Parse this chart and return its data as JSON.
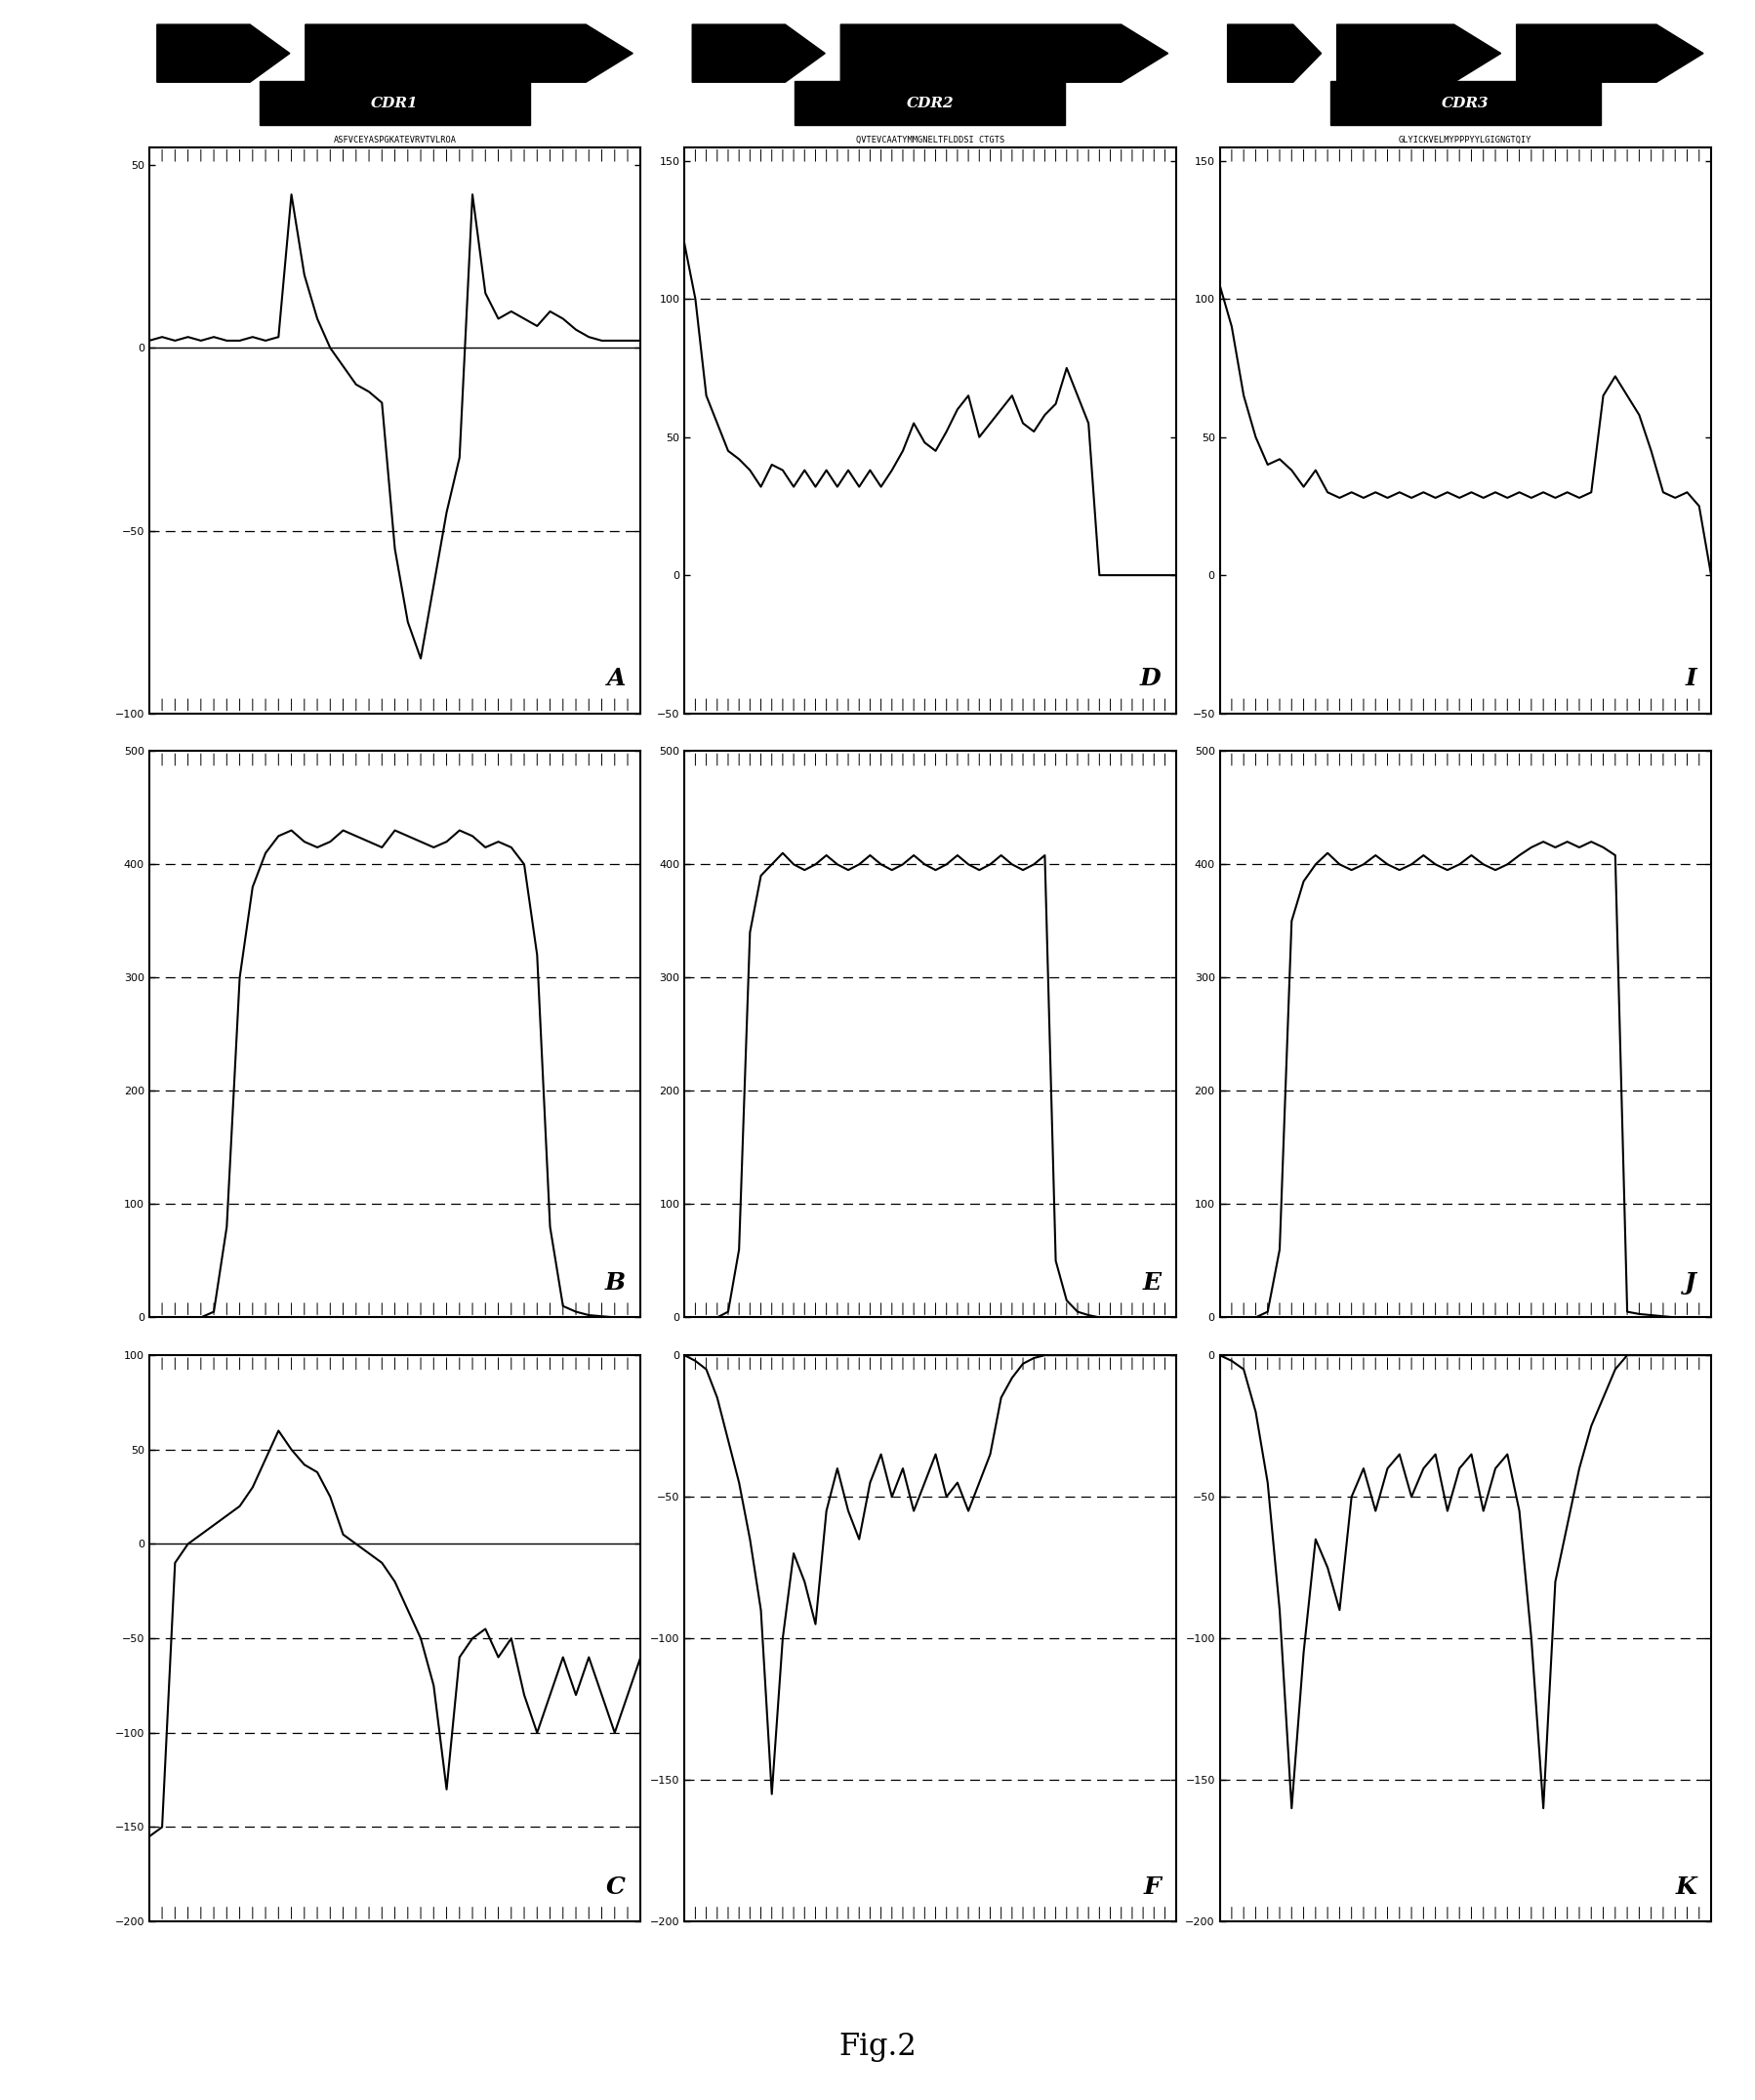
{
  "fig_title": "Fig.2",
  "seq1": "ASFVCEYASPGKATEVRVTVLROA",
  "seq2": "QVTEVCAATYMMGNELTFLDDSI CTGTS",
  "seq3": "GLYICKVELMYPPPYYLGIGNGTQIY",
  "plots": {
    "A": {
      "ylim": [
        -100,
        55
      ],
      "yticks": [
        -100,
        -50,
        0,
        50
      ],
      "dashes": [
        -50
      ],
      "zero_line": true,
      "x": [
        0,
        1,
        2,
        3,
        4,
        5,
        6,
        7,
        8,
        9,
        10,
        11,
        12,
        13,
        14,
        15,
        16,
        17,
        18,
        19,
        20,
        21,
        22,
        23,
        24,
        25,
        26,
        27,
        28,
        29,
        30,
        31,
        32,
        33,
        34,
        35,
        36,
        37,
        38
      ],
      "y": [
        2,
        3,
        2,
        3,
        2,
        3,
        2,
        2,
        3,
        2,
        3,
        42,
        20,
        8,
        0,
        -5,
        -10,
        -12,
        -15,
        -55,
        -75,
        -85,
        -65,
        -45,
        -30,
        42,
        15,
        8,
        10,
        8,
        6,
        10,
        8,
        5,
        3,
        2,
        2,
        2,
        2
      ]
    },
    "B": {
      "ylim": [
        0,
        500
      ],
      "yticks": [
        0,
        100,
        200,
        300,
        400,
        500
      ],
      "dashes": [
        100,
        200,
        300,
        400
      ],
      "zero_line": false,
      "x": [
        0,
        1,
        2,
        3,
        4,
        5,
        6,
        7,
        8,
        9,
        10,
        11,
        12,
        13,
        14,
        15,
        16,
        17,
        18,
        19,
        20,
        21,
        22,
        23,
        24,
        25,
        26,
        27,
        28,
        29,
        30,
        31,
        32,
        33,
        34,
        35,
        36,
        37,
        38
      ],
      "y": [
        0,
        0,
        0,
        0,
        0,
        5,
        80,
        300,
        380,
        410,
        425,
        430,
        420,
        415,
        420,
        430,
        425,
        420,
        415,
        430,
        425,
        420,
        415,
        420,
        430,
        425,
        415,
        420,
        415,
        400,
        320,
        80,
        10,
        5,
        2,
        1,
        0,
        0,
        0
      ]
    },
    "C": {
      "ylim": [
        -200,
        100
      ],
      "yticks": [
        -200,
        -150,
        -100,
        -50,
        0,
        50,
        100
      ],
      "dashes": [
        -150,
        -100,
        -50,
        50
      ],
      "zero_line": true,
      "x": [
        0,
        1,
        2,
        3,
        4,
        5,
        6,
        7,
        8,
        9,
        10,
        11,
        12,
        13,
        14,
        15,
        16,
        17,
        18,
        19,
        20,
        21,
        22,
        23,
        24,
        25,
        26,
        27,
        28,
        29,
        30,
        31,
        32,
        33,
        34,
        35,
        36,
        37,
        38
      ],
      "y": [
        -155,
        -150,
        -10,
        0,
        5,
        10,
        15,
        20,
        30,
        45,
        60,
        50,
        42,
        38,
        25,
        5,
        0,
        -5,
        -10,
        -20,
        -35,
        -50,
        -75,
        -130,
        -60,
        -50,
        -45,
        -60,
        -50,
        -80,
        -100,
        -80,
        -60,
        -80,
        -60,
        -80,
        -100,
        -80,
        -60
      ]
    },
    "D": {
      "ylim": [
        -50,
        155
      ],
      "yticks": [
        -50,
        0,
        50,
        100,
        150
      ],
      "dashes": [
        100
      ],
      "zero_line": false,
      "x": [
        0,
        1,
        2,
        3,
        4,
        5,
        6,
        7,
        8,
        9,
        10,
        11,
        12,
        13,
        14,
        15,
        16,
        17,
        18,
        19,
        20,
        21,
        22,
        23,
        24,
        25,
        26,
        27,
        28,
        29,
        30,
        31,
        32,
        33,
        34,
        35,
        36,
        37,
        38,
        39,
        40,
        41,
        42,
        43,
        44,
        45
      ],
      "y": [
        120,
        100,
        65,
        55,
        45,
        42,
        38,
        32,
        40,
        38,
        32,
        38,
        32,
        38,
        32,
        38,
        32,
        38,
        32,
        38,
        45,
        55,
        48,
        45,
        52,
        60,
        65,
        50,
        55,
        60,
        65,
        55,
        52,
        58,
        62,
        75,
        65,
        55,
        0,
        0,
        0,
        0,
        0,
        0,
        0,
        0
      ]
    },
    "E": {
      "ylim": [
        0,
        500
      ],
      "yticks": [
        0,
        100,
        200,
        300,
        400,
        500
      ],
      "dashes": [
        100,
        200,
        300,
        400
      ],
      "zero_line": false,
      "x": [
        0,
        1,
        2,
        3,
        4,
        5,
        6,
        7,
        8,
        9,
        10,
        11,
        12,
        13,
        14,
        15,
        16,
        17,
        18,
        19,
        20,
        21,
        22,
        23,
        24,
        25,
        26,
        27,
        28,
        29,
        30,
        31,
        32,
        33,
        34,
        35,
        36,
        37,
        38,
        39,
        40,
        41,
        42,
        43,
        44,
        45
      ],
      "y": [
        0,
        0,
        0,
        0,
        5,
        60,
        340,
        390,
        400,
        410,
        400,
        395,
        400,
        408,
        400,
        395,
        400,
        408,
        400,
        395,
        400,
        408,
        400,
        395,
        400,
        408,
        400,
        395,
        400,
        408,
        400,
        395,
        400,
        408,
        50,
        15,
        5,
        2,
        0,
        0,
        0,
        0,
        0,
        0,
        0,
        0
      ]
    },
    "F": {
      "ylim": [
        -200,
        0
      ],
      "yticks": [
        -200,
        -150,
        -100,
        -50,
        0
      ],
      "dashes": [
        -150,
        -100,
        -50
      ],
      "zero_line": false,
      "x": [
        0,
        1,
        2,
        3,
        4,
        5,
        6,
        7,
        8,
        9,
        10,
        11,
        12,
        13,
        14,
        15,
        16,
        17,
        18,
        19,
        20,
        21,
        22,
        23,
        24,
        25,
        26,
        27,
        28,
        29,
        30,
        31,
        32,
        33,
        34,
        35,
        36,
        37,
        38,
        39,
        40,
        41,
        42,
        43,
        44,
        45
      ],
      "y": [
        0,
        -2,
        -5,
        -15,
        -30,
        -45,
        -65,
        -90,
        -155,
        -100,
        -70,
        -80,
        -95,
        -55,
        -40,
        -55,
        -65,
        -45,
        -35,
        -50,
        -40,
        -55,
        -45,
        -35,
        -50,
        -45,
        -55,
        -45,
        -35,
        -15,
        -8,
        -3,
        -1,
        0,
        0,
        0,
        0,
        0,
        0,
        0,
        0,
        0,
        0,
        0,
        0,
        0
      ]
    },
    "I": {
      "ylim": [
        -50,
        155
      ],
      "yticks": [
        -50,
        0,
        50,
        100,
        150
      ],
      "dashes": [
        100
      ],
      "zero_line": false,
      "x": [
        0,
        1,
        2,
        3,
        4,
        5,
        6,
        7,
        8,
        9,
        10,
        11,
        12,
        13,
        14,
        15,
        16,
        17,
        18,
        19,
        20,
        21,
        22,
        23,
        24,
        25,
        26,
        27,
        28,
        29,
        30,
        31,
        32,
        33,
        34,
        35,
        36,
        37,
        38,
        39,
        40,
        41
      ],
      "y": [
        105,
        90,
        65,
        50,
        40,
        42,
        38,
        32,
        38,
        30,
        28,
        30,
        28,
        30,
        28,
        30,
        28,
        30,
        28,
        30,
        28,
        30,
        28,
        30,
        28,
        30,
        28,
        30,
        28,
        30,
        28,
        30,
        65,
        72,
        65,
        58,
        45,
        30,
        28,
        30,
        25,
        0
      ]
    },
    "J": {
      "ylim": [
        0,
        500
      ],
      "yticks": [
        0,
        100,
        200,
        300,
        400,
        500
      ],
      "dashes": [
        100,
        200,
        300,
        400
      ],
      "zero_line": false,
      "x": [
        0,
        1,
        2,
        3,
        4,
        5,
        6,
        7,
        8,
        9,
        10,
        11,
        12,
        13,
        14,
        15,
        16,
        17,
        18,
        19,
        20,
        21,
        22,
        23,
        24,
        25,
        26,
        27,
        28,
        29,
        30,
        31,
        32,
        33,
        34,
        35,
        36,
        37,
        38,
        39,
        40,
        41
      ],
      "y": [
        0,
        0,
        0,
        0,
        5,
        60,
        350,
        385,
        400,
        410,
        400,
        395,
        400,
        408,
        400,
        395,
        400,
        408,
        400,
        395,
        400,
        408,
        400,
        395,
        400,
        408,
        415,
        420,
        415,
        420,
        415,
        420,
        415,
        408,
        5,
        3,
        2,
        1,
        0,
        0,
        0,
        0
      ]
    },
    "K": {
      "ylim": [
        -200,
        0
      ],
      "yticks": [
        -200,
        -150,
        -100,
        -50,
        0
      ],
      "dashes": [
        -150,
        -100,
        -50
      ],
      "zero_line": false,
      "x": [
        0,
        1,
        2,
        3,
        4,
        5,
        6,
        7,
        8,
        9,
        10,
        11,
        12,
        13,
        14,
        15,
        16,
        17,
        18,
        19,
        20,
        21,
        22,
        23,
        24,
        25,
        26,
        27,
        28,
        29,
        30,
        31,
        32,
        33,
        34,
        35,
        36,
        37,
        38,
        39,
        40,
        41
      ],
      "y": [
        0,
        -2,
        -5,
        -20,
        -45,
        -90,
        -160,
        -105,
        -65,
        -75,
        -90,
        -50,
        -40,
        -55,
        -40,
        -35,
        -50,
        -40,
        -35,
        -55,
        -40,
        -35,
        -55,
        -40,
        -35,
        -55,
        -100,
        -160,
        -80,
        -60,
        -40,
        -25,
        -15,
        -5,
        0,
        0,
        0,
        0,
        0,
        0,
        0,
        0
      ]
    }
  }
}
